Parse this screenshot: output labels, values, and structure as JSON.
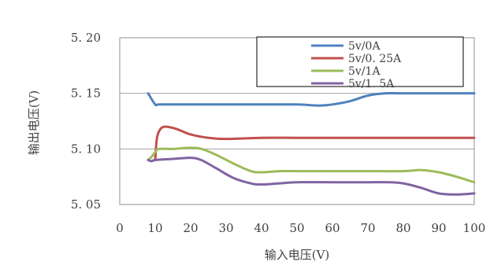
{
  "chart_data": {
    "type": "line",
    "title": "",
    "xlabel": "输入电压(V)",
    "ylabel": "输出电压(V)",
    "xlim": [
      0,
      100
    ],
    "ylim": [
      5.05,
      5.2
    ],
    "xticks": [
      "0",
      "10",
      "20",
      "30",
      "40",
      "50",
      "60",
      "70",
      "80",
      "90",
      "100"
    ],
    "yticks": [
      "5. 20",
      "5. 15",
      "5. 10",
      "5. 05"
    ],
    "grid": "horizontal",
    "legend_position": "top-right",
    "series": [
      {
        "name": "5v/0A",
        "color": "#4f81bd",
        "x": [
          8,
          10,
          11,
          15,
          20,
          30,
          40,
          50,
          56,
          60,
          65,
          70,
          75,
          80,
          90,
          100
        ],
        "y": [
          5.15,
          5.14,
          5.14,
          5.14,
          5.14,
          5.14,
          5.14,
          5.14,
          5.139,
          5.14,
          5.143,
          5.148,
          5.15,
          5.15,
          5.15,
          5.15
        ]
      },
      {
        "name": "5v/0. 25A",
        "color": "#c0504d",
        "x": [
          10,
          10.5,
          11.5,
          13,
          16,
          20,
          25,
          30,
          40,
          50,
          60,
          70,
          80,
          90,
          100
        ],
        "y": [
          5.09,
          5.11,
          5.118,
          5.12,
          5.118,
          5.113,
          5.11,
          5.109,
          5.11,
          5.11,
          5.11,
          5.11,
          5.11,
          5.11,
          5.11
        ]
      },
      {
        "name": "5v/1A",
        "color": "#9bbb59",
        "x": [
          8,
          9,
          10,
          11,
          15,
          20,
          23,
          27,
          32,
          37,
          40,
          45,
          50,
          60,
          70,
          80,
          85,
          90,
          95,
          100
        ],
        "y": [
          5.09,
          5.093,
          5.097,
          5.1,
          5.1,
          5.101,
          5.1,
          5.095,
          5.087,
          5.08,
          5.079,
          5.08,
          5.08,
          5.08,
          5.08,
          5.08,
          5.081,
          5.079,
          5.075,
          5.07
        ]
      },
      {
        "name": "5v/1. 5A",
        "color": "#8064a2",
        "x": [
          8,
          9,
          10,
          15,
          20,
          23,
          27,
          32,
          37,
          40,
          45,
          50,
          60,
          70,
          76,
          80,
          85,
          90,
          95,
          100
        ],
        "y": [
          5.09,
          5.089,
          5.09,
          5.091,
          5.092,
          5.09,
          5.083,
          5.074,
          5.069,
          5.068,
          5.069,
          5.07,
          5.07,
          5.07,
          5.07,
          5.069,
          5.065,
          5.06,
          5.059,
          5.06
        ]
      }
    ]
  }
}
